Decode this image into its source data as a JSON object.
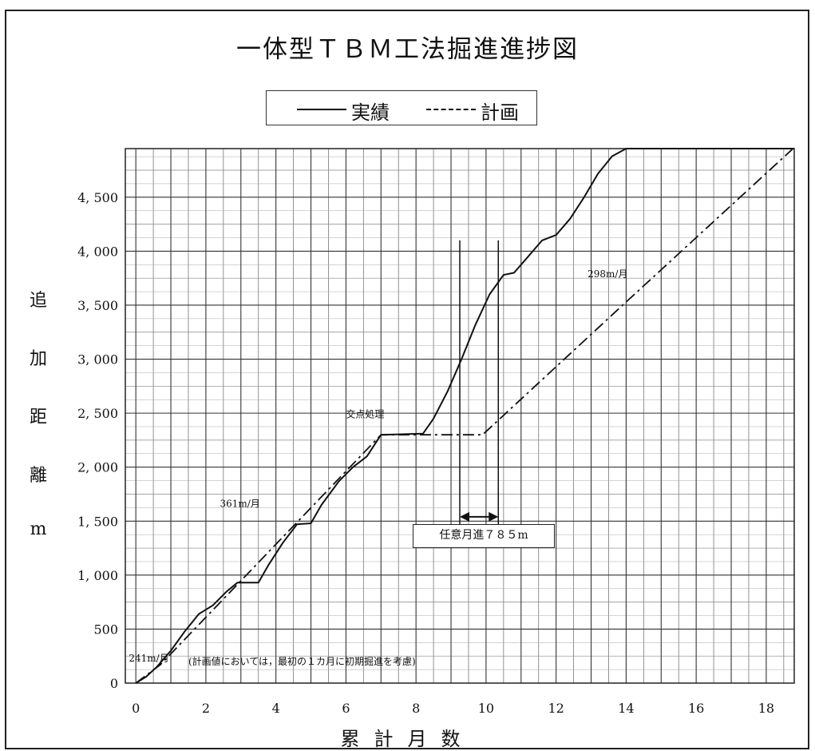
{
  "chart_data": {
    "type": "line",
    "title": "一体型ＴＢＭ工法掘進進捗図",
    "xlabel": "累計月数",
    "ylabel": "追加距離m",
    "xlim": [
      -0.3,
      18.8
    ],
    "ylim": [
      0,
      4950
    ],
    "x_ticks": [
      0,
      2,
      4,
      6,
      8,
      10,
      12,
      14,
      16,
      18
    ],
    "x_tick_labels": [
      "0",
      "2",
      "4",
      "6",
      "8",
      "10",
      "12",
      "14",
      "16",
      "18"
    ],
    "y_ticks": [
      0,
      500,
      1000,
      1500,
      2000,
      2500,
      3000,
      3500,
      4000,
      4500
    ],
    "y_tick_labels": [
      "0",
      "500",
      "1, 000",
      "1, 500",
      "2, 000",
      "2, 500",
      "3, 000",
      "3, 500",
      "4, 000",
      "4, 500"
    ],
    "grid": true,
    "legend": {
      "placement": "top-center",
      "entries": [
        "実績",
        "計画"
      ]
    },
    "series": [
      {
        "name": "実績",
        "style": "solid",
        "x": [
          0,
          0.3,
          0.6,
          1.0,
          1.4,
          1.8,
          2.2,
          2.6,
          2.9,
          3.5,
          3.8,
          4.2,
          4.6,
          5.0,
          5.3,
          5.8,
          6.2,
          6.6,
          7.0,
          8.2,
          8.5,
          8.9,
          9.3,
          9.7,
          10.1,
          10.5,
          10.8,
          11.2,
          11.6,
          12.0,
          12.4,
          12.8,
          13.2,
          13.6,
          14.0,
          18.8
        ],
        "y": [
          0,
          60,
          150,
          300,
          480,
          640,
          720,
          850,
          930,
          930,
          1100,
          1300,
          1470,
          1480,
          1650,
          1870,
          2000,
          2100,
          2300,
          2310,
          2450,
          2700,
          3000,
          3320,
          3600,
          3780,
          3800,
          3950,
          4100,
          4150,
          4300,
          4500,
          4720,
          4880,
          4950,
          4950
        ]
      },
      {
        "name": "計画",
        "style": "dashdot",
        "x": [
          0,
          0.7,
          7.0,
          9.9,
          13.9,
          18.8
        ],
        "y": [
          0,
          170,
          2300,
          2300,
          3500,
          4960
        ]
      }
    ],
    "annotations": [
      {
        "text": "241m/月",
        "x": -0.2,
        "y": 200
      },
      {
        "text": "(計画値においては，最初の１カ月に初期掘進を考慮)",
        "x": 1.5,
        "y": 170
      },
      {
        "text": "361m/月",
        "x": 2.4,
        "y": 1630
      },
      {
        "text": "交点処理",
        "x": 6.0,
        "y": 2460
      },
      {
        "text": "298m/月",
        "x": 12.9,
        "y": 3760
      },
      {
        "text": "任意月進７８５m",
        "x": 9.2,
        "y": 1400
      }
    ],
    "range_marker": {
      "x_start": 9.25,
      "x_end": 10.35
    }
  }
}
